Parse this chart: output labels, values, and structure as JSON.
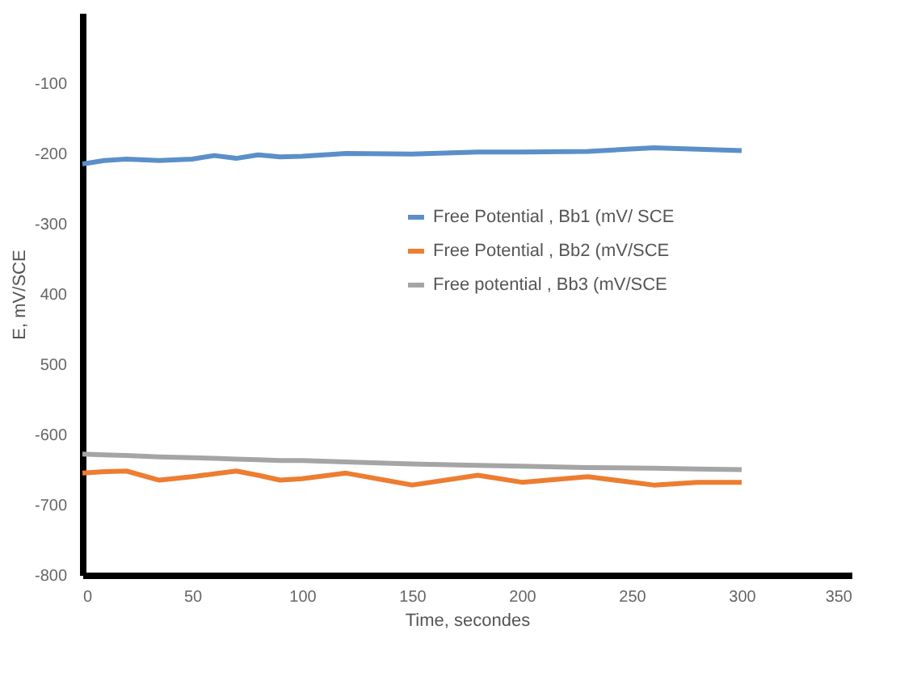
{
  "chart_data": {
    "type": "line",
    "xlabel": "Time, secondes",
    "ylabel": "E, mV/SCE",
    "xlim": [
      0,
      350
    ],
    "xticks": [
      0,
      50,
      100,
      150,
      200,
      250,
      300,
      350
    ],
    "ylim": [
      -800,
      0
    ],
    "yticks": [
      -100,
      -200,
      -300,
      {
        "value": -400,
        "label": "400"
      },
      {
        "value": -500,
        "label": "500"
      },
      -600,
      -700,
      -800
    ],
    "grid": false,
    "legend": "right",
    "marker": "none",
    "line_style": "solid",
    "x": [
      0,
      10,
      20,
      35,
      50,
      60,
      70,
      80,
      90,
      100,
      120,
      150,
      180,
      200,
      230,
      260,
      280,
      300
    ],
    "series": [
      {
        "name": "Free Potential , Bb1 (mV/ SCE",
        "color": "#5b8fc9",
        "values": [
          -215,
          -210,
          -208,
          -210,
          -208,
          -203,
          -207,
          -202,
          -205,
          -204,
          -200,
          -201,
          -198,
          -198,
          -197,
          -192,
          -194,
          -196
        ]
      },
      {
        "name": "Free Potential , Bb2 (mV/SCE",
        "color": "#ed7d31",
        "values": [
          -655,
          -653,
          -652,
          -665,
          -660,
          -656,
          -652,
          -658,
          -665,
          -663,
          -655,
          -672,
          -658,
          -668,
          -660,
          -672,
          -668,
          -668
        ]
      },
      {
        "name": "Free potential , Bb3 (mV/SCE",
        "color": "#a5a5a5",
        "values": [
          -628,
          -629,
          -630,
          -632,
          -633,
          -634,
          -635,
          -636,
          -637,
          -637,
          -639,
          -642,
          -644,
          -645,
          -647,
          -648,
          -649,
          -650
        ]
      }
    ]
  }
}
